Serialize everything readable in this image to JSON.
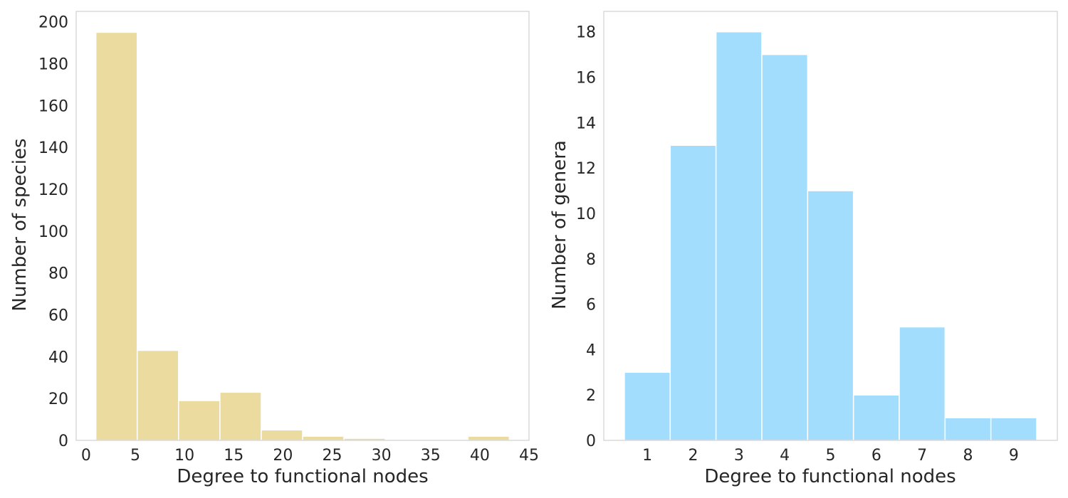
{
  "chart_data": [
    {
      "type": "bar",
      "title": "",
      "xlabel": "Degree to functional nodes",
      "ylabel": "Number of species",
      "color": "#EBDB9E",
      "edge_color": "#ffffff",
      "grid": false,
      "xlim": [
        -1,
        45
      ],
      "ylim": [
        0,
        205
      ],
      "xticks": [
        0,
        5,
        10,
        15,
        20,
        25,
        30,
        35,
        40,
        45
      ],
      "yticks": [
        0,
        20,
        40,
        60,
        80,
        100,
        120,
        140,
        160,
        180,
        200
      ],
      "bins": [
        {
          "x0": 1.0,
          "x1": 5.2,
          "value": 195
        },
        {
          "x0": 5.2,
          "x1": 9.4,
          "value": 43
        },
        {
          "x0": 9.4,
          "x1": 13.6,
          "value": 19
        },
        {
          "x0": 13.6,
          "x1": 17.8,
          "value": 23
        },
        {
          "x0": 17.8,
          "x1": 22.0,
          "value": 5
        },
        {
          "x0": 22.0,
          "x1": 26.2,
          "value": 2
        },
        {
          "x0": 26.2,
          "x1": 30.4,
          "value": 1
        },
        {
          "x0": 30.4,
          "x1": 34.6,
          "value": 0
        },
        {
          "x0": 34.6,
          "x1": 38.8,
          "value": 0
        },
        {
          "x0": 38.8,
          "x1": 43.0,
          "value": 2
        }
      ]
    },
    {
      "type": "bar",
      "title": "",
      "xlabel": "Degree to functional nodes",
      "ylabel": "Number of genera",
      "color": "#A3DDFD",
      "edge_color": "#ffffff",
      "grid": false,
      "xlim": [
        0.05,
        9.95
      ],
      "ylim": [
        0,
        18.9
      ],
      "xticks": [
        1,
        2,
        3,
        4,
        5,
        6,
        7,
        8,
        9
      ],
      "yticks": [
        0,
        2,
        4,
        6,
        8,
        10,
        12,
        14,
        16,
        18
      ],
      "bins": [
        {
          "x0": 0.5,
          "x1": 1.5,
          "value": 3
        },
        {
          "x0": 1.5,
          "x1": 2.5,
          "value": 13
        },
        {
          "x0": 2.5,
          "x1": 3.5,
          "value": 18
        },
        {
          "x0": 3.5,
          "x1": 4.5,
          "value": 17
        },
        {
          "x0": 4.5,
          "x1": 5.5,
          "value": 11
        },
        {
          "x0": 5.5,
          "x1": 6.5,
          "value": 2
        },
        {
          "x0": 6.5,
          "x1": 7.5,
          "value": 5
        },
        {
          "x0": 7.5,
          "x1": 8.5,
          "value": 1
        },
        {
          "x0": 8.5,
          "x1": 9.5,
          "value": 1
        }
      ]
    }
  ]
}
